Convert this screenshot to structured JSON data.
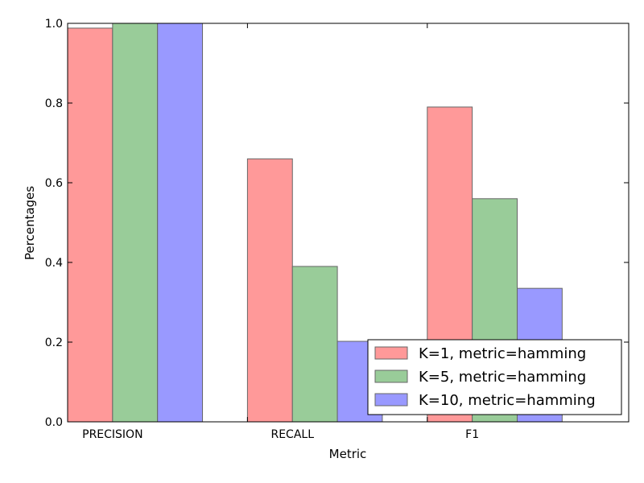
{
  "chart_data": {
    "type": "bar",
    "title": "",
    "xlabel": "Metric",
    "ylabel": "Percentages",
    "categories": [
      "PRECISION",
      "RECALL",
      "F1"
    ],
    "ylim": [
      0,
      1.0
    ],
    "yticks": [
      "0.0",
      "0.2",
      "0.4",
      "0.6",
      "0.8",
      "1.0"
    ],
    "grid": false,
    "legend_position": "lower-right",
    "series": [
      {
        "name": "K=1, metric=hamming",
        "color": "#ff9999",
        "values": [
          0.988,
          0.66,
          0.79
        ]
      },
      {
        "name": "K=5, metric=hamming",
        "color": "#99cc99",
        "values": [
          1.0,
          0.39,
          0.56
        ]
      },
      {
        "name": "K=10, metric=hamming",
        "color": "#9999ff",
        "values": [
          1.0,
          0.202,
          0.335
        ]
      }
    ]
  }
}
